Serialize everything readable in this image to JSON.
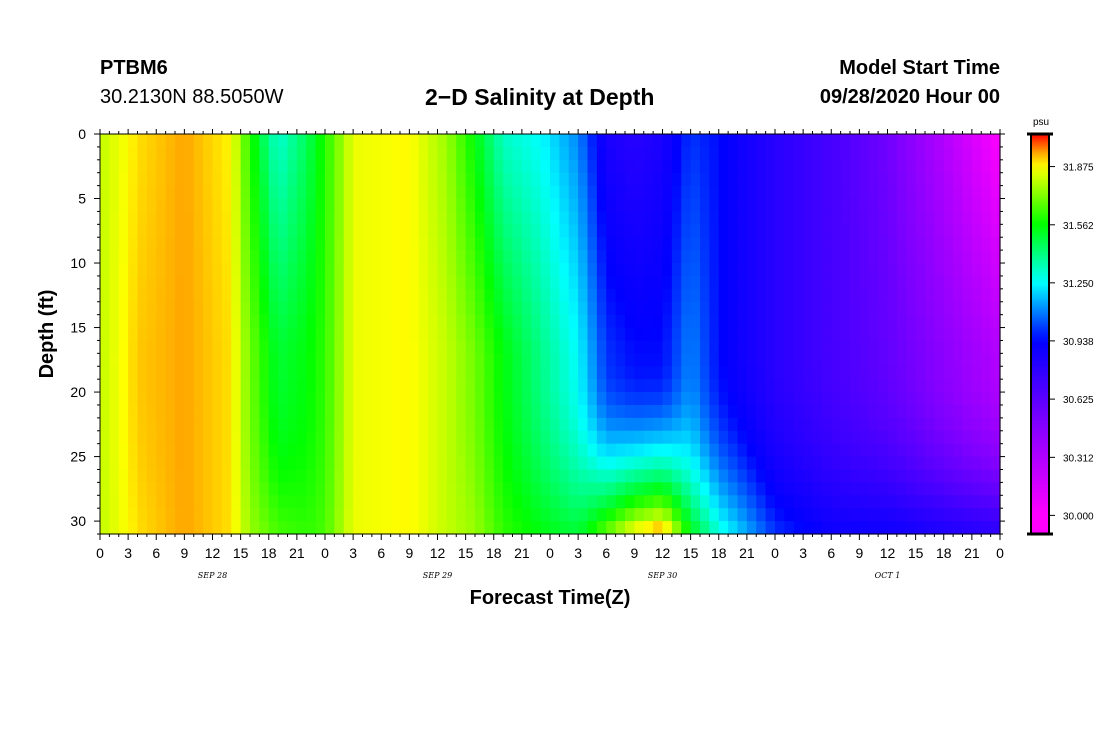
{
  "header": {
    "station": "PTBM6",
    "coordinates": "30.2130N 88.5050W",
    "title": "2−D Salinity at Depth",
    "start_label": "Model Start Time",
    "start_value": "09/28/2020 Hour 00"
  },
  "chart_data": {
    "type": "heatmap",
    "title": "2−D Salinity at Depth",
    "xlabel": "Forecast Time(Z)",
    "ylabel": "Depth (ft)",
    "x_range_hours": [
      0,
      96
    ],
    "y_range": [
      0,
      31
    ],
    "y_inverted": true,
    "x_tick_labels": [
      "0",
      "3",
      "6",
      "9",
      "12",
      "15",
      "18",
      "21",
      "0",
      "3",
      "6",
      "9",
      "12",
      "15",
      "18",
      "21",
      "0",
      "3",
      "6",
      "9",
      "12",
      "15",
      "18",
      "21",
      "0",
      "3",
      "6",
      "9",
      "12",
      "15",
      "18",
      "21",
      "0"
    ],
    "x_day_labels": [
      {
        "label": "SEP 28",
        "hour": 12
      },
      {
        "label": "SEP 29",
        "hour": 36
      },
      {
        "label": "SEP 30",
        "hour": 60
      },
      {
        "label": "OCT 1",
        "hour": 84
      }
    ],
    "y_ticks": [
      0,
      5,
      10,
      15,
      20,
      25,
      30
    ],
    "colorbar": {
      "unit": "psu",
      "min": 29.9,
      "max": 32.05,
      "tick_values": [
        30.0,
        30.312,
        30.625,
        30.938,
        31.25,
        31.562,
        31.875
      ],
      "tick_labels": [
        "30.000",
        "30.312",
        "30.625",
        "30.938",
        "31.250",
        "31.562",
        "31.875"
      ]
    },
    "salinity_profiles": [
      {
        "hour": 0,
        "surface": 31.8,
        "mid": 31.8,
        "bottom": 31.8
      },
      {
        "hour": 4,
        "surface": 31.9,
        "mid": 31.92,
        "bottom": 31.9
      },
      {
        "hour": 9,
        "surface": 31.95,
        "mid": 31.95,
        "bottom": 31.95
      },
      {
        "hour": 14,
        "surface": 31.88,
        "mid": 31.9,
        "bottom": 31.9
      },
      {
        "hour": 16,
        "surface": 31.6,
        "mid": 31.7,
        "bottom": 31.75
      },
      {
        "hour": 19,
        "surface": 31.3,
        "mid": 31.5,
        "bottom": 31.65
      },
      {
        "hour": 22,
        "surface": 31.45,
        "mid": 31.55,
        "bottom": 31.62
      },
      {
        "hour": 24,
        "surface": 31.6,
        "mid": 31.62,
        "bottom": 31.65
      },
      {
        "hour": 27,
        "surface": 31.85,
        "mid": 31.85,
        "bottom": 31.85
      },
      {
        "hour": 33,
        "surface": 31.88,
        "mid": 31.88,
        "bottom": 31.88
      },
      {
        "hour": 37,
        "surface": 31.75,
        "mid": 31.8,
        "bottom": 31.8
      },
      {
        "hour": 40,
        "surface": 31.55,
        "mid": 31.7,
        "bottom": 31.75
      },
      {
        "hour": 43,
        "surface": 31.32,
        "mid": 31.55,
        "bottom": 31.62
      },
      {
        "hour": 47,
        "surface": 31.25,
        "mid": 31.4,
        "bottom": 31.55
      },
      {
        "hour": 51,
        "surface": 31.1,
        "mid": 31.25,
        "bottom": 31.5
      },
      {
        "hour": 54,
        "surface": 30.85,
        "mid": 31.0,
        "bottom": 31.7
      },
      {
        "hour": 57,
        "surface": 30.8,
        "mid": 30.95,
        "bottom": 31.9
      },
      {
        "hour": 60,
        "surface": 30.85,
        "mid": 30.95,
        "bottom": 32.0
      },
      {
        "hour": 63,
        "surface": 31.0,
        "mid": 31.1,
        "bottom": 31.55
      },
      {
        "hour": 66,
        "surface": 30.95,
        "mid": 30.95,
        "bottom": 31.3
      },
      {
        "hour": 72,
        "surface": 30.8,
        "mid": 30.8,
        "bottom": 31.0
      },
      {
        "hour": 78,
        "surface": 30.7,
        "mid": 30.7,
        "bottom": 30.9
      },
      {
        "hour": 84,
        "surface": 30.55,
        "mid": 30.6,
        "bottom": 30.9
      },
      {
        "hour": 90,
        "surface": 30.3,
        "mid": 30.45,
        "bottom": 30.85
      },
      {
        "hour": 96,
        "surface": 30.0,
        "mid": 30.3,
        "bottom": 30.8
      }
    ],
    "colors": {
      "low": "#ff00ff",
      "mid_low": "#0000ff",
      "mid": "#00ffff",
      "mid_high": "#00ff00",
      "high": "#ffff00",
      "max": "#ff0000"
    }
  }
}
